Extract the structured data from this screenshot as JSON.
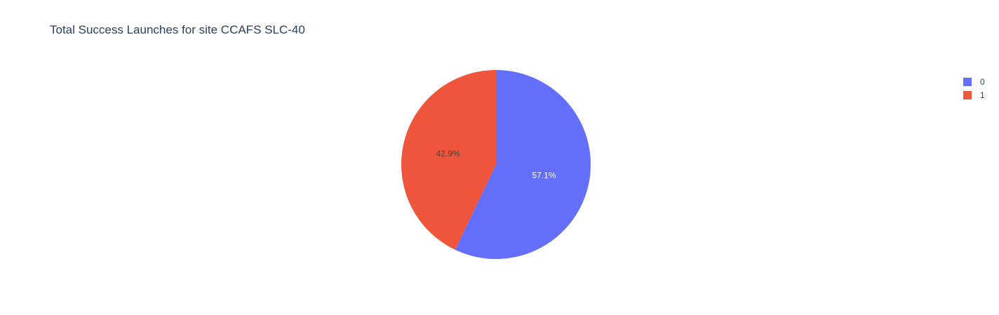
{
  "chart_data": {
    "type": "pie",
    "title": "Total Success Launches for site CCAFS SLC-40",
    "slices": [
      {
        "label": "0",
        "value": 57.1,
        "text": "57.1%",
        "color": "#636efa",
        "text_color": "#ffffff"
      },
      {
        "label": "1",
        "value": 42.9,
        "text": "42.9%",
        "color": "#ef553b",
        "text_color": "#444444"
      }
    ],
    "sort_order": "clockwise from top",
    "legend_position": "top-right"
  },
  "legend": {
    "items": [
      {
        "label": "0",
        "color": "#636efa"
      },
      {
        "label": "1",
        "color": "#ef553b"
      }
    ]
  }
}
